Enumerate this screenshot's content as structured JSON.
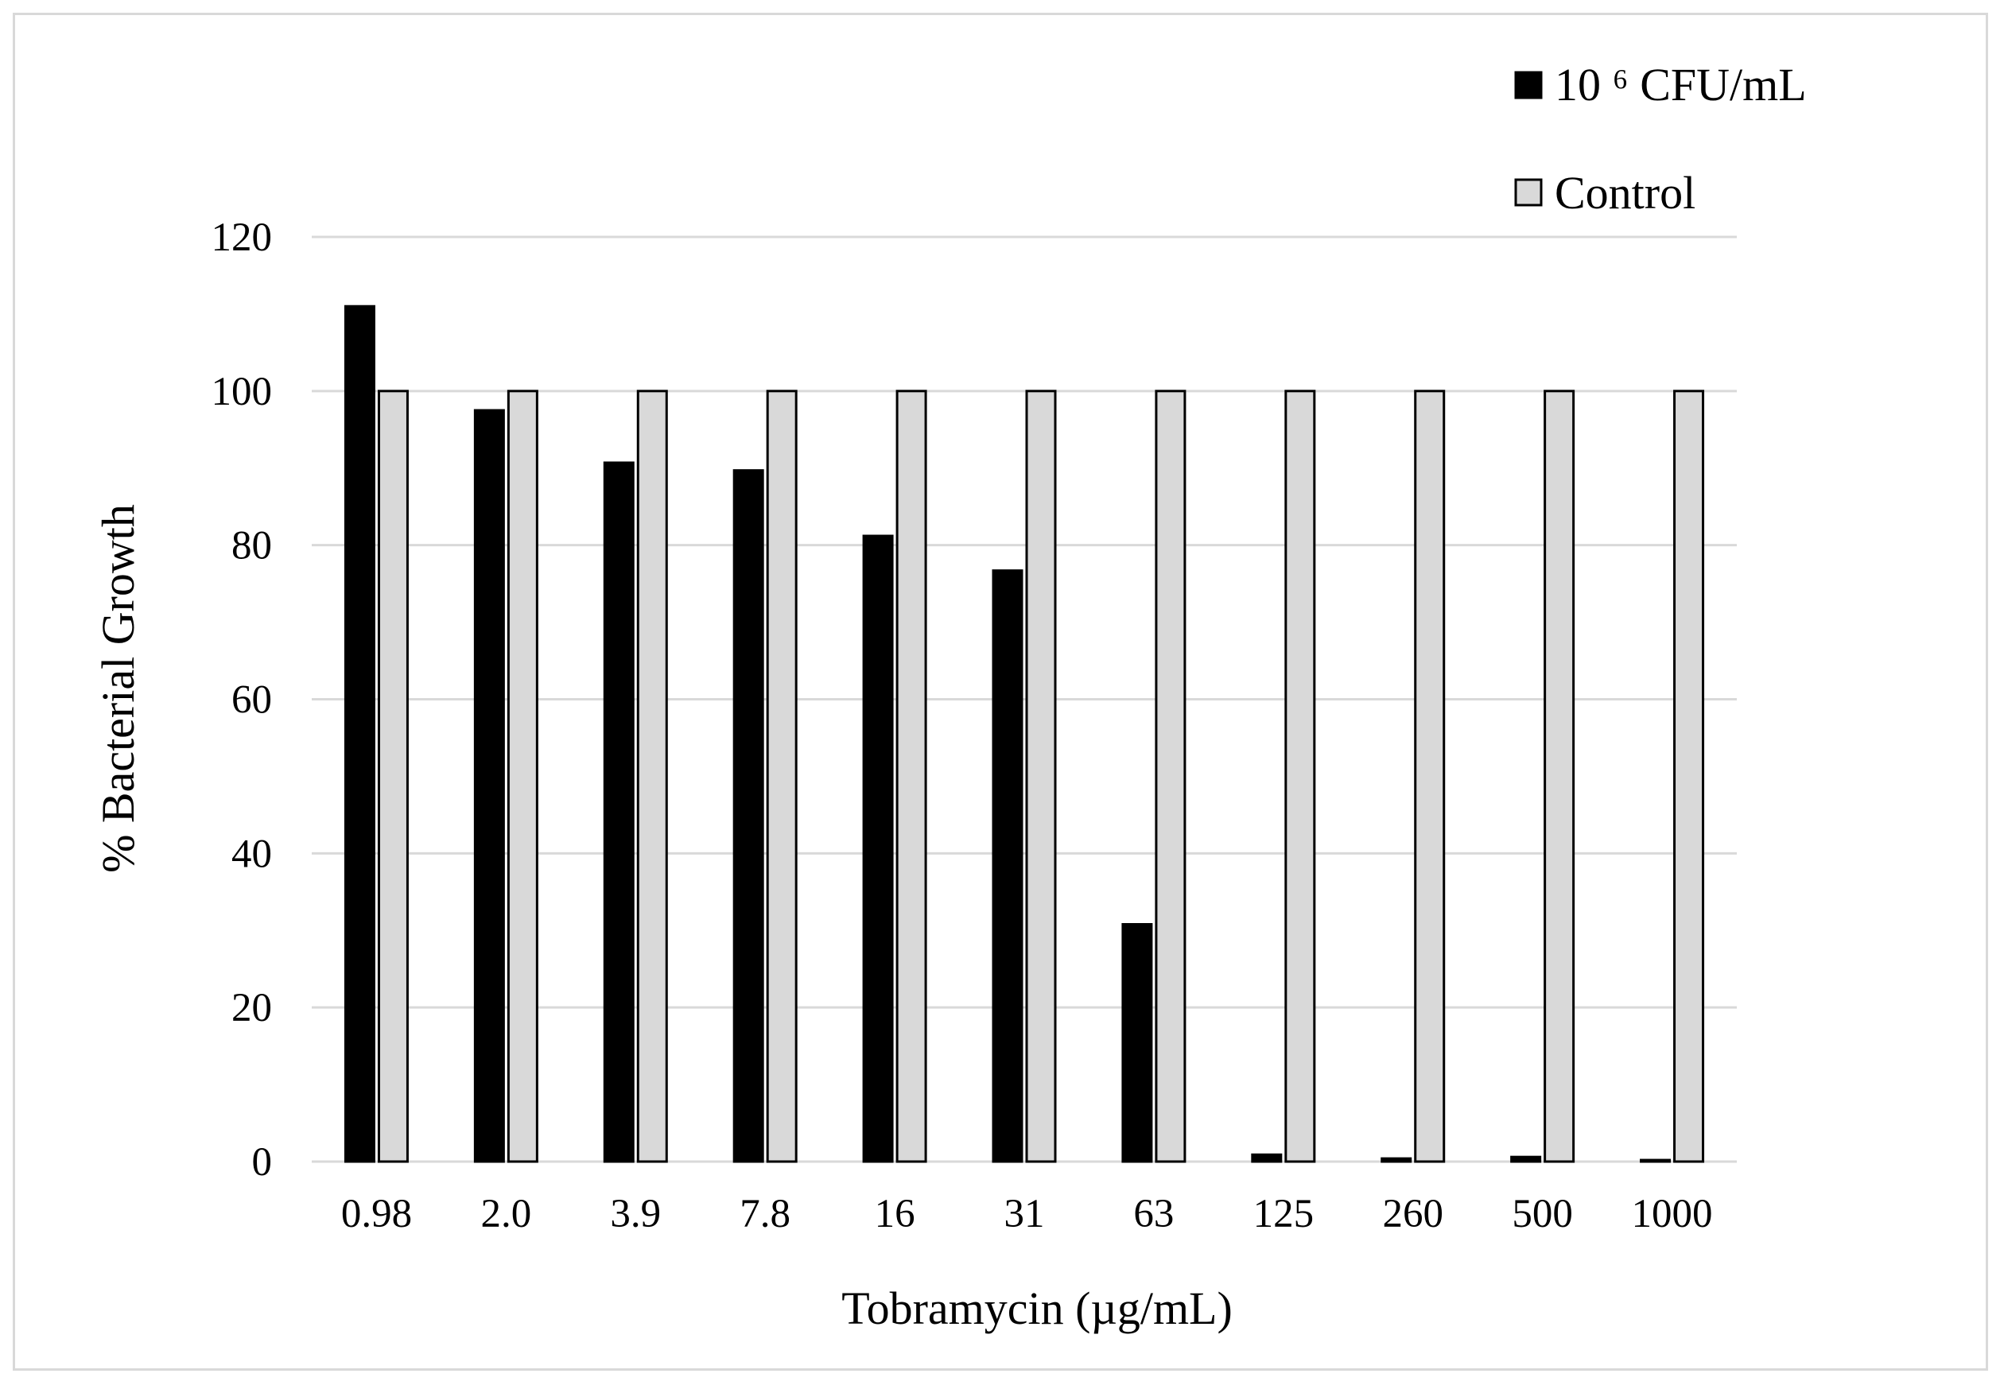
{
  "chart_data": {
    "type": "bar",
    "title": "",
    "xlabel": "Tobramycin (µg/mL)",
    "ylabel": "% Bacterial Growth",
    "ylim": [
      0,
      120
    ],
    "yticks": [
      "0",
      "20",
      "40",
      "60",
      "80",
      "100",
      "120"
    ],
    "grid": true,
    "legend_position": "top-right",
    "categories": [
      "0.98",
      "2.0",
      "3.9",
      "7.8",
      "16",
      "31",
      "63",
      "125",
      "260",
      "500",
      "1000"
    ],
    "series": [
      {
        "name": "10 ⁶ CFU/mL",
        "color": "#000000",
        "values": [
          111,
          97.5,
          90.7,
          89.7,
          81.2,
          76.7,
          30.8,
          0.9,
          0.4,
          0.6,
          0.2
        ]
      },
      {
        "name": "Control",
        "color": "#d9d9d9",
        "values": [
          100,
          100,
          100,
          100,
          100,
          100,
          100,
          100,
          100,
          100,
          100
        ]
      }
    ]
  }
}
